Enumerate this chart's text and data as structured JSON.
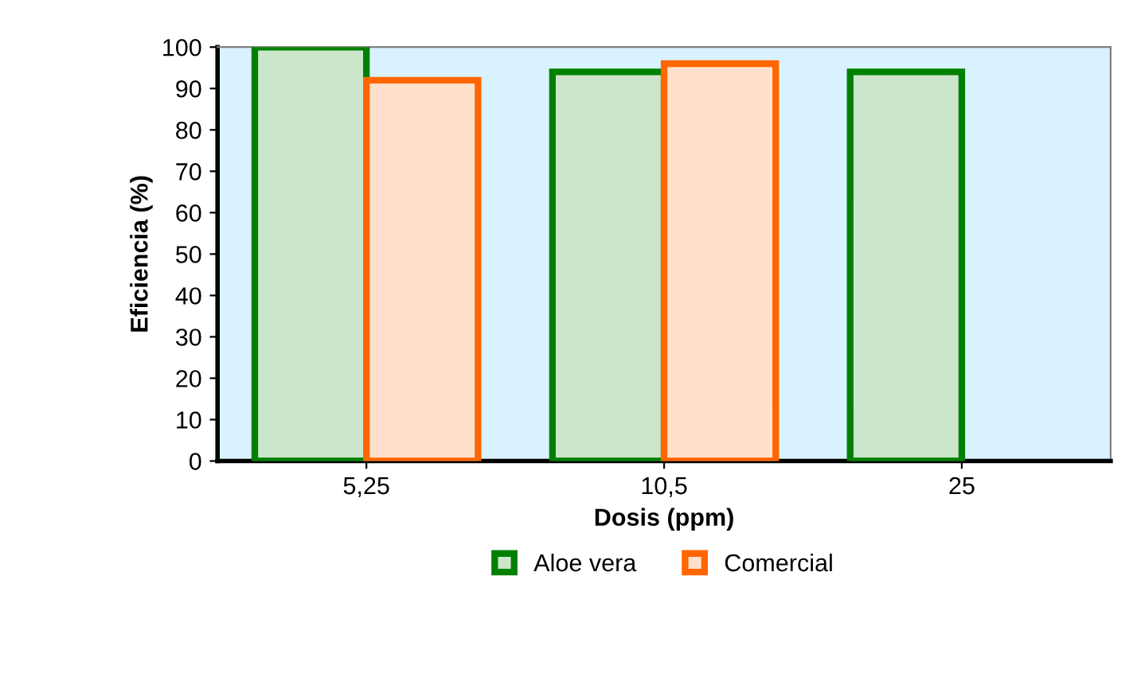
{
  "chart_data": {
    "type": "bar",
    "xlabel": "Dosis (ppm)",
    "ylabel": "Eficiencia (%)",
    "categories": [
      "5,25",
      "10,5",
      "25"
    ],
    "series": [
      {
        "name": "Aloe vera",
        "color": "#008000",
        "values": [
          100,
          94,
          94
        ]
      },
      {
        "name": "Comercial",
        "color": "#ff6600",
        "values": [
          92,
          96,
          null
        ]
      }
    ],
    "ylim": [
      0,
      100
    ],
    "yticks": [
      0,
      10,
      20,
      30,
      40,
      50,
      60,
      70,
      80,
      90,
      100
    ],
    "grid": false,
    "legend": "bottom"
  }
}
